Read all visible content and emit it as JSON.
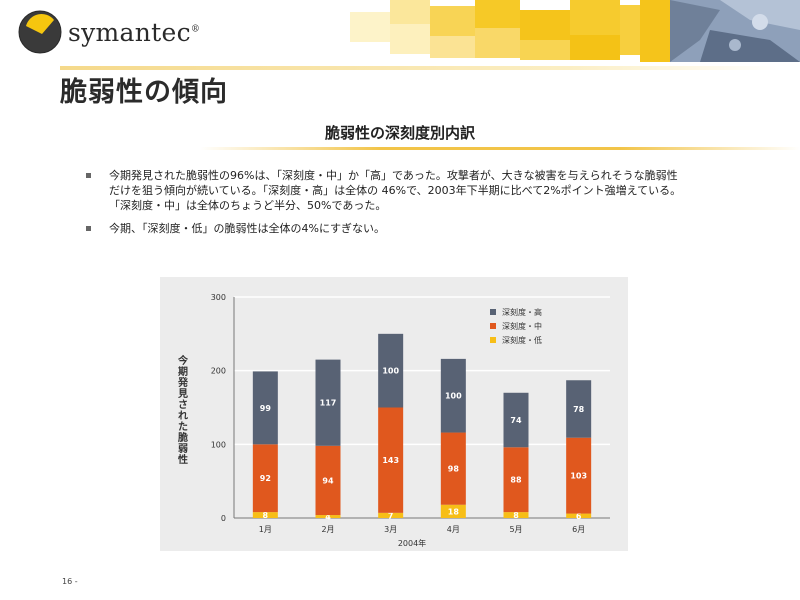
{
  "header": {
    "brand": "symantec",
    "brand_mark": "®",
    "title": "脆弱性の傾向",
    "subtitle": "脆弱性の深刻度別内訳"
  },
  "bullets": [
    {
      "lines": [
        "今期発見された脆弱性の96%は、「深刻度・中」か「高」であった。攻撃者が、大きな被害を与えられそうな脆弱性",
        "だけを狙う傾向が続いている。「深刻度・高」は全体の 46%で、2003年下半期に比べて2%ポイント強増えている。",
        "「深刻度・中」は全体のちょうど半分、50%であった。"
      ]
    },
    {
      "lines": [
        "今期、「深刻度・低」の脆弱性は全体の4%にすぎない。"
      ]
    }
  ],
  "chart_data": {
    "type": "bar",
    "stacked": true,
    "categories": [
      "1月",
      "2月",
      "3月",
      "4月",
      "5月",
      "6月"
    ],
    "xlabel": "2004年",
    "ylabel": "今期発見された脆弱性",
    "ylim": [
      0,
      300
    ],
    "yticks": [
      0,
      100,
      200,
      300
    ],
    "grid": true,
    "legend_position": "top-right",
    "series": [
      {
        "name": "深刻度・低",
        "values": [
          8,
          4,
          7,
          18,
          8,
          6
        ],
        "color": "#f7be17"
      },
      {
        "name": "深刻度・中",
        "values": [
          92,
          94,
          143,
          98,
          88,
          103
        ],
        "color": "#e0581e"
      },
      {
        "name": "深刻度・高",
        "values": [
          99,
          117,
          100,
          100,
          74,
          78
        ],
        "color": "#586274"
      }
    ],
    "legend_order": [
      "深刻度・高",
      "深刻度・中",
      "深刻度・低"
    ]
  },
  "footer": {
    "page": "16 -"
  },
  "colors": {
    "accent": "#f2c448",
    "logo_yellow": "#f5c60f"
  }
}
